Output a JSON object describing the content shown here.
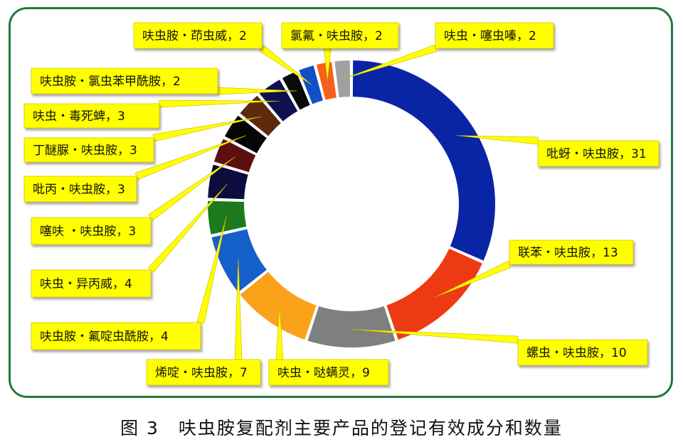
{
  "figure": {
    "caption": "图 3　呋虫胺复配剂主要产品的登记有效成分和数量"
  },
  "chart_data": {
    "type": "pie",
    "variant": "donut",
    "start": "top, clockwise",
    "slices": [
      {
        "label": "吡蚜・呋虫胺",
        "value": 31,
        "color": "#0a24a6"
      },
      {
        "label": "联苯・呋虫胺",
        "value": 13,
        "color": "#ee3a12"
      },
      {
        "label": "螺虫・呋虫胺",
        "value": 10,
        "color": "#7f7f7f"
      },
      {
        "label": "呋虫・哒螨灵",
        "value": 9,
        "color": "#fba21a"
      },
      {
        "label": "烯啶・呋虫胺",
        "value": 7,
        "color": "#1460c8"
      },
      {
        "label": "呋虫胺・氟啶虫酰胺",
        "value": 4,
        "color": "#1c7a1c"
      },
      {
        "label": "呋虫・异丙威",
        "value": 4,
        "color": "#0c0d3e"
      },
      {
        "label": "噻呋 ・呋虫胺",
        "value": 3,
        "color": "#5c0f0f"
      },
      {
        "label": "吡丙・呋虫胺",
        "value": 3,
        "color": "#050505"
      },
      {
        "label": "丁醚脲・呋虫胺",
        "value": 3,
        "color": "#5e2a0c"
      },
      {
        "label": "呋虫・毒死蜱",
        "value": 3,
        "color": "#0e1050"
      },
      {
        "label": "呋虫胺・氯虫苯甲酰胺",
        "value": 2,
        "color": "#0a0a0a"
      },
      {
        "label": "呋虫胺・茚虫威",
        "value": 2,
        "color": "#1350c5"
      },
      {
        "label": "氯氟・呋虫胺",
        "value": 2,
        "color": "#f5601a"
      },
      {
        "label": "呋虫・噻虫嗪",
        "value": 2,
        "color": "#a0a0a0"
      }
    ],
    "label_style": {
      "background": "#ffff00",
      "leader_color": "#ffff00"
    }
  }
}
